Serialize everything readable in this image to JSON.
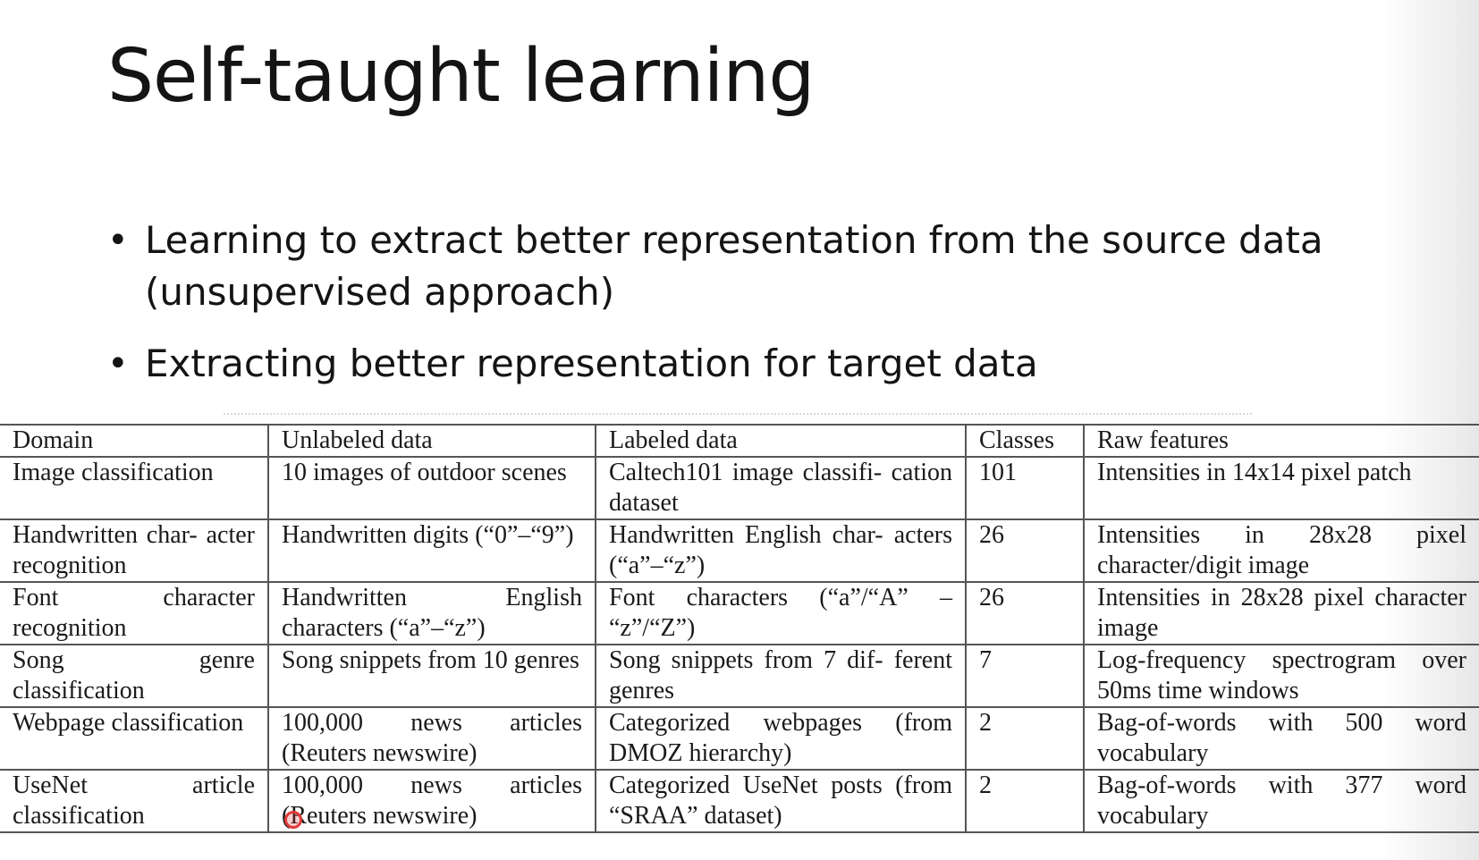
{
  "slide": {
    "title": "Self-taught learning",
    "bullets": [
      "Learning to extract better representation from the source data (unsupervised approach)",
      "Extracting better representation for target data"
    ]
  },
  "table": {
    "headers": [
      "Domain",
      "Unlabeled data",
      "Labeled data",
      "Classes",
      "Raw features"
    ],
    "rows": [
      [
        "Image classification",
        "10 images of outdoor scenes",
        "Caltech101 image classifi- cation dataset",
        "101",
        "Intensities in 14x14 pixel patch"
      ],
      [
        "Handwritten char- acter recognition",
        "Handwritten digits (“0”–“9”)",
        "Handwritten English char- acters (“a”–“z”)",
        "26",
        "Intensities in 28x28 pixel character/digit image"
      ],
      [
        "Font character recognition",
        "Handwritten English characters (“a”–“z”)",
        "Font characters (“a”/“A” – “z”/“Z”)",
        "26",
        "Intensities in 28x28 pixel character image"
      ],
      [
        "Song genre classification",
        "Song snippets from 10 genres",
        "Song snippets from 7 dif- ferent genres",
        "7",
        "Log-frequency spectrogram over 50ms time windows"
      ],
      [
        "Webpage classification",
        "100,000 news articles (Reuters newswire)",
        "Categorized webpages (from DMOZ hierarchy)",
        "2",
        "Bag-of-words with 500 word vocabulary"
      ],
      [
        "UseNet article classification",
        "100,000 news articles (Reuters newswire)",
        "Categorized UseNet posts (from “SRAA” dataset)",
        "2",
        "Bag-of-words with 377 word vocabulary"
      ]
    ]
  },
  "colors": {
    "cursor": "#e03a3a",
    "text": "#141414",
    "grid": "#555555"
  }
}
